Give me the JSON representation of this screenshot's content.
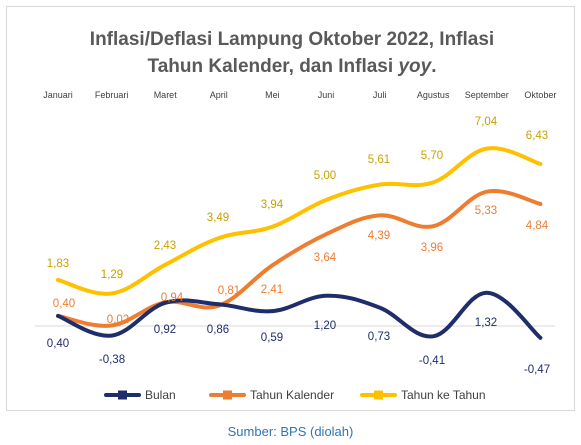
{
  "chart_data": {
    "type": "line",
    "title_lines": [
      [
        {
          "text": "Inflasi/Deflasi Lampung Oktober 2022, Inflasi",
          "italic": false
        }
      ],
      [
        {
          "text": "Tahun Kalender, dan Inflasi ",
          "italic": false
        },
        {
          "text": "yoy",
          "italic": true
        },
        {
          "text": ".",
          "italic": false
        }
      ]
    ],
    "categories": [
      "Januari",
      "Februari",
      "Maret",
      "April",
      "Mei",
      "Juni",
      "Juli",
      "Agustus",
      "September",
      "Oktober"
    ],
    "series": [
      {
        "name": "Bulan",
        "color": "#1f2e6b",
        "label_color": "#1f2e6b",
        "values": [
          0.4,
          -0.38,
          0.92,
          0.86,
          0.59,
          1.2,
          0.73,
          -0.41,
          1.32,
          -0.47
        ],
        "labels": [
          "0,40",
          "-0,38",
          "0,92",
          "0,86",
          "0,59",
          "1,20",
          "0,73",
          "-0,41",
          "1,32",
          "-0,47"
        ]
      },
      {
        "name": "Tahun Kalender",
        "color": "#ed7d31",
        "label_color": "#ed7d31",
        "values": [
          0.4,
          0.02,
          0.94,
          0.81,
          2.41,
          3.64,
          4.39,
          3.96,
          5.33,
          4.84
        ],
        "labels": [
          "0,40",
          "0,02",
          "0,94",
          "0,81",
          "2,41",
          "3,64",
          "4,39",
          "3,96",
          "5,33",
          "4,84"
        ]
      },
      {
        "name": "Tahun ke Tahun",
        "color": "#ffc000",
        "label_color": "#c9a000",
        "values": [
          1.83,
          1.29,
          2.43,
          3.49,
          3.94,
          5.0,
          5.61,
          5.7,
          7.04,
          6.43
        ],
        "labels": [
          "1,83",
          "1,29",
          "2,43",
          "3,49",
          "3,94",
          "5,00",
          "5,61",
          "5,70",
          "7,04",
          "6,43"
        ]
      }
    ],
    "legend_position": "bottom",
    "x_axis_position": "top",
    "grid": false
  },
  "source": "Sumber: BPS (diolah)"
}
